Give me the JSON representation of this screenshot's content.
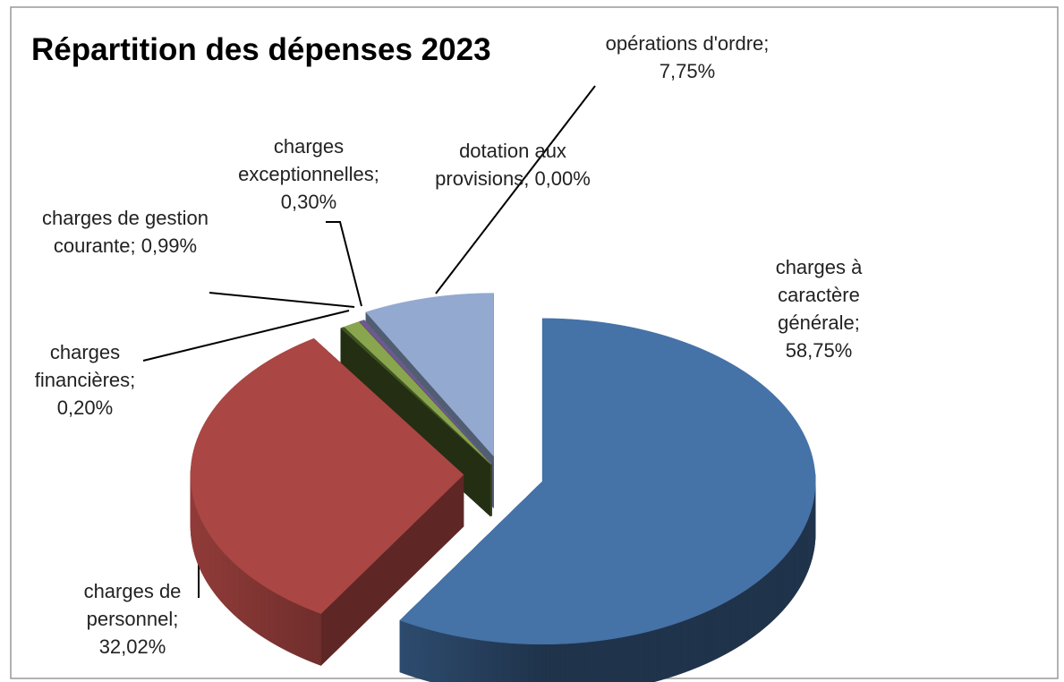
{
  "chart_data": {
    "type": "pie",
    "title": "Répartition des dépenses 2023",
    "categories": [
      "charges à caractère générale",
      "charges de personnel",
      "charges financières",
      "charges de gestion courante",
      "charges exceptionnelles",
      "dotation aux provisions",
      "opérations d'ordre"
    ],
    "values": [
      58.75,
      32.02,
      0.2,
      0.99,
      0.3,
      0.0,
      7.75
    ],
    "value_labels": [
      "charges à caractère générale; 58,75%",
      "charges de personnel; 32,02%",
      "charges financières; 0,20%",
      "charges de gestion courante; 0,99%",
      "charges exceptionnelles; 0,30%",
      "dotation aux provisions; 0,00%",
      "opérations d'ordre; 7,75%"
    ],
    "colors": [
      "#4572a7",
      "#aa4643",
      "#3f5423",
      "#89a54e",
      "#71588f",
      "#4198af",
      "#93a9cf"
    ]
  }
}
